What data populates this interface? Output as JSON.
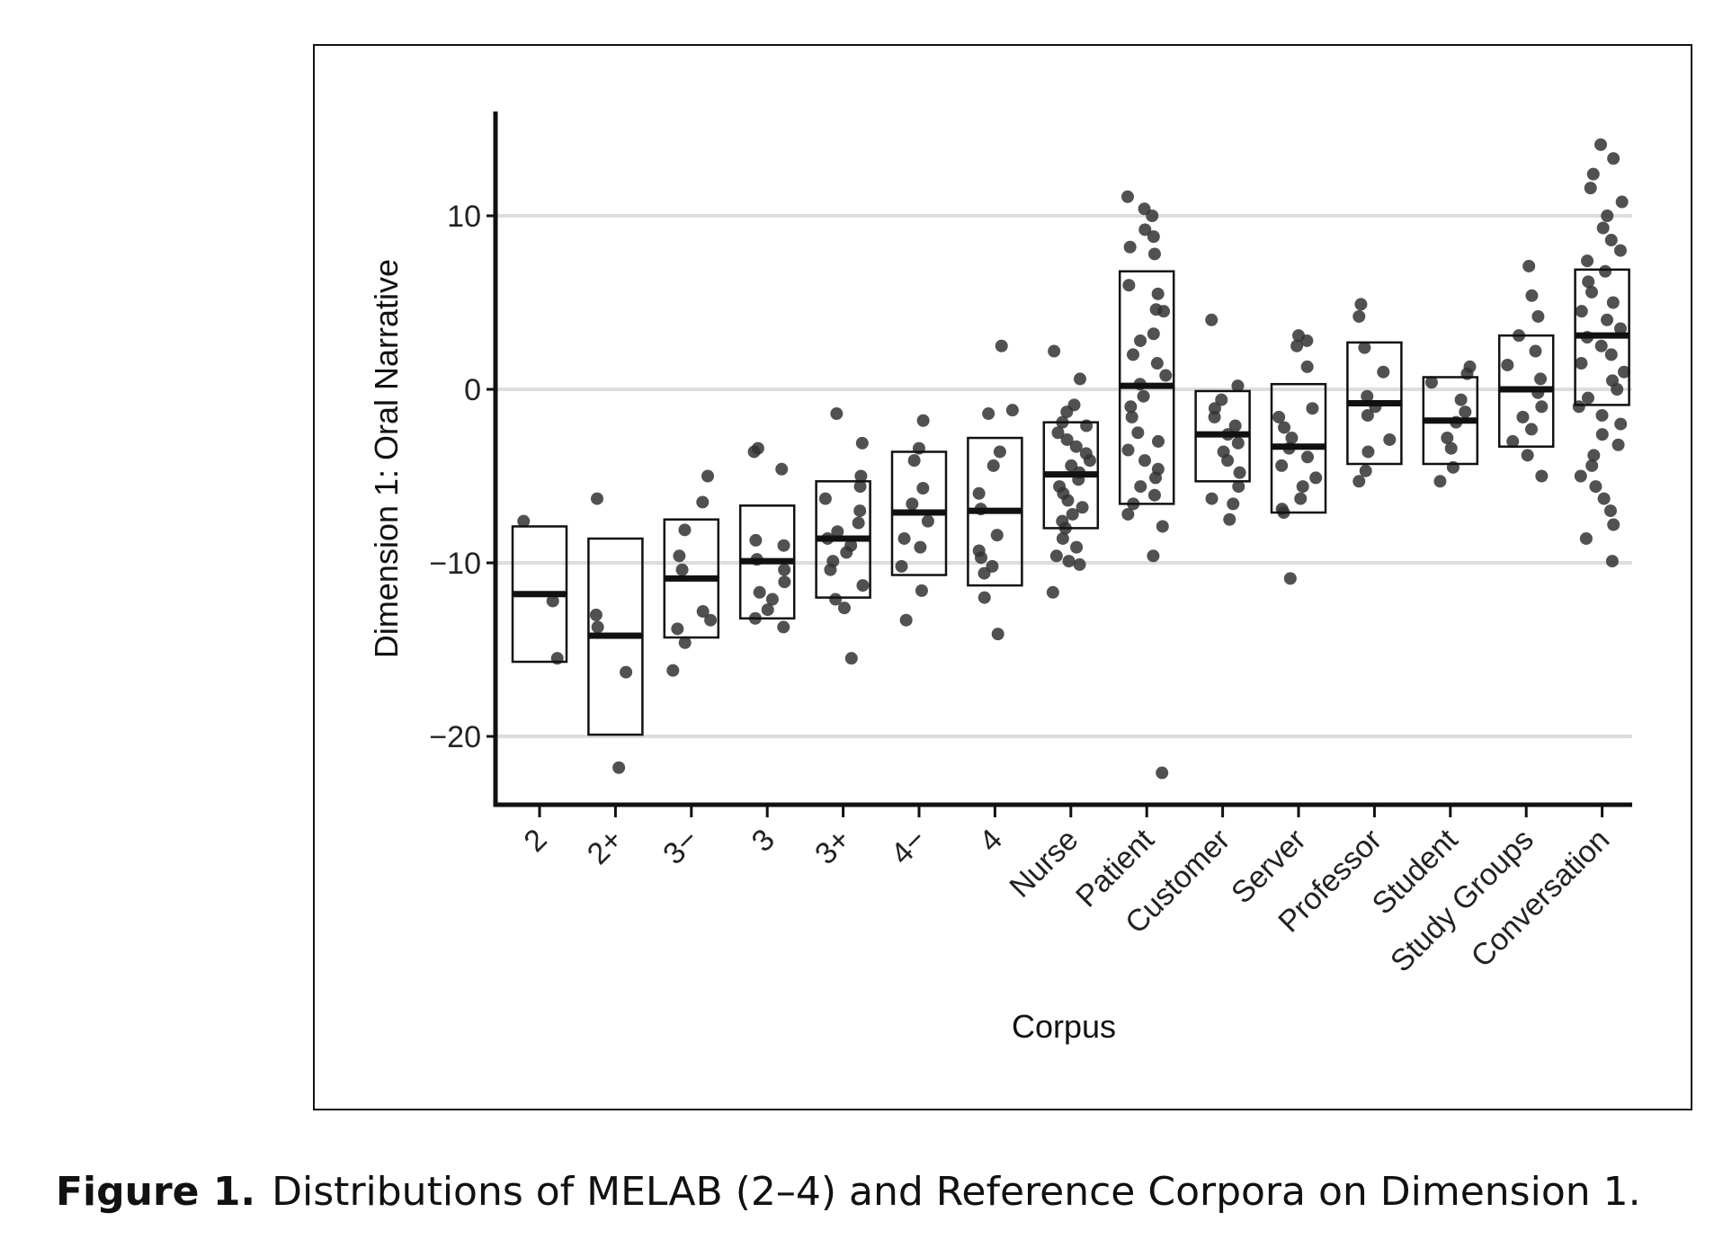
{
  "caption": {
    "label": "Figure 1.",
    "text": "Distributions of MELAB (2–4) and Reference Corpora on Dimension 1."
  },
  "chart_data": {
    "type": "box",
    "xlabel": "Corpus",
    "ylabel": "Dimension 1: Oral Narrative",
    "ylim": [
      -24,
      16
    ],
    "yticks": [
      10,
      0,
      -10,
      -20
    ],
    "ytick_labels": [
      "10",
      "0",
      "−10",
      "−20"
    ],
    "grid": "horizontal",
    "point_color": "#333333",
    "categories": [
      "2",
      "2+",
      "3−",
      "3",
      "3+",
      "4−",
      "4",
      "Nurse",
      "Patient",
      "Customer",
      "Server",
      "Professor",
      "Student",
      "Study Groups",
      "Conversation"
    ],
    "boxes": [
      {
        "q1": -15.7,
        "median": -11.8,
        "q3": -7.9
      },
      {
        "q1": -19.9,
        "median": -14.2,
        "q3": -8.6
      },
      {
        "q1": -14.3,
        "median": -10.9,
        "q3": -7.5
      },
      {
        "q1": -13.2,
        "median": -9.9,
        "q3": -6.7
      },
      {
        "q1": -12.0,
        "median": -8.6,
        "q3": -5.3
      },
      {
        "q1": -10.7,
        "median": -7.1,
        "q3": -3.6
      },
      {
        "q1": -11.3,
        "median": -7.0,
        "q3": -2.8
      },
      {
        "q1": -8.0,
        "median": -4.9,
        "q3": -1.9
      },
      {
        "q1": -6.6,
        "median": 0.2,
        "q3": 6.8
      },
      {
        "q1": -5.3,
        "median": -2.6,
        "q3": -0.1
      },
      {
        "q1": -7.1,
        "median": -3.3,
        "q3": 0.3
      },
      {
        "q1": -4.3,
        "median": -0.8,
        "q3": 2.7
      },
      {
        "q1": -4.3,
        "median": -1.8,
        "q3": 0.7
      },
      {
        "q1": -3.3,
        "median": 0.0,
        "q3": 3.1
      },
      {
        "q1": -0.9,
        "median": 3.1,
        "q3": 6.9
      }
    ],
    "points": [
      [
        -7.6,
        -12.2,
        -15.5
      ],
      [
        -6.3,
        -13.0,
        -13.7,
        -16.3,
        -21.8
      ],
      [
        -5.0,
        -6.5,
        -8.1,
        -9.6,
        -10.4,
        -12.8,
        -13.3,
        -13.8,
        -14.6,
        -16.2
      ],
      [
        -3.4,
        -3.6,
        -4.6,
        -8.7,
        -9.0,
        -9.8,
        -10.4,
        -11.1,
        -11.7,
        -12.1,
        -12.7,
        -13.2,
        -13.7
      ],
      [
        -1.4,
        -3.1,
        -5.0,
        -5.6,
        -6.3,
        -7.0,
        -7.7,
        -8.2,
        -8.6,
        -9.0,
        -9.4,
        -9.9,
        -10.4,
        -11.3,
        -12.1,
        -12.6,
        -15.5
      ],
      [
        -1.8,
        -3.4,
        -4.1,
        -5.7,
        -6.6,
        -7.6,
        -8.6,
        -9.1,
        -10.2,
        -11.6,
        -13.3
      ],
      [
        2.5,
        -1.2,
        -1.4,
        -3.6,
        -4.4,
        -6.0,
        -6.9,
        -8.4,
        -9.3,
        -9.7,
        -10.2,
        -10.6,
        -12.0,
        -14.1
      ],
      [
        2.2,
        0.6,
        -0.9,
        -1.3,
        -1.9,
        -2.1,
        -2.5,
        -2.9,
        -3.3,
        -3.7,
        -4.1,
        -4.4,
        -4.8,
        -5.2,
        -5.6,
        -6.0,
        -6.4,
        -6.8,
        -7.2,
        -7.6,
        -8.0,
        -8.6,
        -9.1,
        -9.6,
        -9.9,
        -10.1,
        -11.7
      ],
      [
        11.1,
        10.4,
        10.0,
        9.2,
        8.8,
        8.2,
        7.8,
        6.0,
        5.5,
        4.6,
        4.5,
        3.2,
        2.8,
        2.0,
        1.5,
        0.8,
        0.3,
        -0.4,
        -1.0,
        -1.6,
        -2.5,
        -3.0,
        -3.5,
        -4.1,
        -4.6,
        -5.1,
        -5.6,
        -6.1,
        -6.6,
        -7.2,
        -7.9,
        -9.6,
        -22.1
      ],
      [
        4.0,
        0.2,
        -0.6,
        -1.1,
        -1.6,
        -2.1,
        -2.6,
        -3.1,
        -3.6,
        -4.1,
        -4.8,
        -5.6,
        -6.3,
        -6.6,
        -7.5
      ],
      [
        3.1,
        2.8,
        2.5,
        1.3,
        -1.1,
        -1.6,
        -2.2,
        -2.8,
        -3.4,
        -3.9,
        -4.4,
        -5.1,
        -5.6,
        -6.3,
        -6.9,
        -7.1,
        -10.9
      ],
      [
        4.9,
        4.2,
        2.4,
        1.0,
        -0.4,
        -1.0,
        -1.5,
        -2.9,
        -3.6,
        -4.7,
        -5.3
      ],
      [
        1.3,
        0.9,
        0.4,
        -0.6,
        -1.3,
        -1.9,
        -2.8,
        -3.4,
        -4.5,
        -5.3
      ],
      [
        7.1,
        5.4,
        4.2,
        3.1,
        2.2,
        1.4,
        0.6,
        -0.2,
        -1.0,
        -1.6,
        -2.3,
        -3.0,
        -3.8,
        -5.0
      ],
      [
        14.1,
        13.3,
        12.4,
        11.6,
        10.8,
        10.0,
        9.3,
        8.6,
        8.0,
        7.4,
        6.8,
        6.2,
        5.6,
        5.0,
        4.5,
        4.0,
        3.5,
        3.0,
        2.5,
        2.0,
        1.5,
        1.0,
        0.5,
        0.0,
        -0.5,
        -1.0,
        -1.5,
        -2.0,
        -2.6,
        -3.2,
        -3.8,
        -4.4,
        -5.0,
        -5.6,
        -6.3,
        -7.0,
        -7.8,
        -8.6,
        -9.9
      ]
    ]
  }
}
